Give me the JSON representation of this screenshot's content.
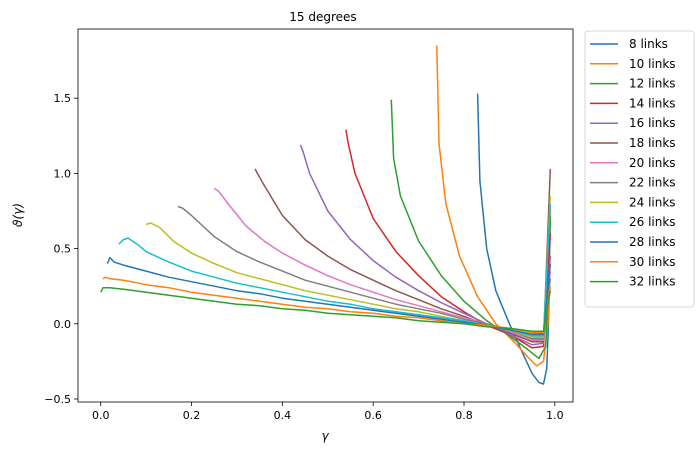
{
  "chart_data": {
    "type": "line",
    "title": "15 degrees",
    "xlabel": "γ",
    "ylabel": "ϑ(γ)",
    "xlim": [
      -0.05,
      1.04
    ],
    "ylim": [
      -0.52,
      1.96
    ],
    "xticks": [
      0.0,
      0.2,
      0.4,
      0.6,
      0.8,
      1.0
    ],
    "xtick_labels": [
      "0.0",
      "0.2",
      "0.4",
      "0.6",
      "0.8",
      "1.0"
    ],
    "yticks": [
      -0.5,
      0.0,
      0.5,
      1.0,
      1.5
    ],
    "ytick_labels": [
      "−0.5",
      "0.0",
      "0.5",
      "1.0",
      "1.5"
    ],
    "grid": false,
    "legend_position": "outside-right",
    "series": [
      {
        "name": "8 links",
        "color": "#1f77b4",
        "x": [
          0.83,
          0.835,
          0.85,
          0.87,
          0.9,
          0.93,
          0.95,
          0.965,
          0.975,
          0.982,
          0.986,
          0.99
        ],
        "y": [
          1.53,
          0.95,
          0.5,
          0.22,
          0.0,
          -0.2,
          -0.33,
          -0.39,
          -0.4,
          -0.3,
          0.0,
          0.7
        ]
      },
      {
        "name": "10 links",
        "color": "#ff7f0e",
        "x": [
          0.74,
          0.745,
          0.76,
          0.79,
          0.83,
          0.87,
          0.91,
          0.94,
          0.96,
          0.975,
          0.985,
          0.99
        ],
        "y": [
          1.85,
          1.2,
          0.8,
          0.45,
          0.18,
          0.0,
          -0.12,
          -0.22,
          -0.28,
          -0.25,
          0.0,
          0.78
        ]
      },
      {
        "name": "12 links",
        "color": "#2ca02c",
        "x": [
          0.64,
          0.645,
          0.66,
          0.7,
          0.75,
          0.8,
          0.85,
          0.9,
          0.94,
          0.965,
          0.98,
          0.99
        ],
        "y": [
          1.49,
          1.1,
          0.85,
          0.55,
          0.32,
          0.15,
          0.02,
          -0.08,
          -0.17,
          -0.23,
          -0.15,
          0.72
        ]
      },
      {
        "name": "14 links",
        "color": "#d62728",
        "x": [
          0.54,
          0.545,
          0.56,
          0.6,
          0.65,
          0.7,
          0.75,
          0.8,
          0.85,
          0.9,
          0.95,
          0.975,
          0.99
        ],
        "y": [
          1.29,
          1.2,
          1.0,
          0.7,
          0.48,
          0.32,
          0.18,
          0.08,
          -0.01,
          -0.07,
          -0.16,
          -0.15,
          0.6
        ]
      },
      {
        "name": "16 links",
        "color": "#9467bd",
        "x": [
          0.44,
          0.445,
          0.46,
          0.5,
          0.55,
          0.6,
          0.65,
          0.7,
          0.75,
          0.8,
          0.85,
          0.9,
          0.95,
          0.975,
          0.99
        ],
        "y": [
          1.19,
          1.15,
          1.0,
          0.75,
          0.56,
          0.42,
          0.31,
          0.22,
          0.14,
          0.07,
          0.0,
          -0.07,
          -0.14,
          -0.13,
          0.45
        ]
      },
      {
        "name": "18 links",
        "color": "#8c564b",
        "x": [
          0.34,
          0.345,
          0.36,
          0.4,
          0.45,
          0.5,
          0.55,
          0.6,
          0.65,
          0.7,
          0.75,
          0.8,
          0.85,
          0.9,
          0.95,
          0.975,
          0.99
        ],
        "y": [
          1.03,
          1.0,
          0.92,
          0.72,
          0.56,
          0.45,
          0.36,
          0.29,
          0.22,
          0.16,
          0.1,
          0.05,
          -0.01,
          -0.06,
          -0.12,
          -0.12,
          1.03
        ]
      },
      {
        "name": "20 links",
        "color": "#e377c2",
        "x": [
          0.25,
          0.26,
          0.28,
          0.32,
          0.36,
          0.4,
          0.45,
          0.5,
          0.55,
          0.6,
          0.65,
          0.7,
          0.75,
          0.8,
          0.85,
          0.9,
          0.95,
          0.975,
          0.99
        ],
        "y": [
          0.9,
          0.88,
          0.8,
          0.65,
          0.55,
          0.47,
          0.39,
          0.32,
          0.26,
          0.21,
          0.16,
          0.12,
          0.08,
          0.04,
          0.0,
          -0.05,
          -0.11,
          -0.11,
          0.35
        ]
      },
      {
        "name": "22 links",
        "color": "#7f7f7f",
        "x": [
          0.17,
          0.18,
          0.2,
          0.25,
          0.3,
          0.35,
          0.4,
          0.45,
          0.5,
          0.55,
          0.6,
          0.65,
          0.7,
          0.75,
          0.8,
          0.85,
          0.9,
          0.95,
          0.975,
          0.99
        ],
        "y": [
          0.78,
          0.77,
          0.72,
          0.58,
          0.48,
          0.41,
          0.35,
          0.29,
          0.25,
          0.21,
          0.17,
          0.13,
          0.1,
          0.07,
          0.03,
          0.0,
          -0.04,
          -0.1,
          -0.1,
          0.3
        ]
      },
      {
        "name": "24 links",
        "color": "#bcbd22",
        "x": [
          0.1,
          0.11,
          0.13,
          0.16,
          0.2,
          0.25,
          0.3,
          0.35,
          0.4,
          0.45,
          0.5,
          0.55,
          0.6,
          0.65,
          0.7,
          0.75,
          0.8,
          0.85,
          0.9,
          0.95,
          0.975,
          0.99
        ],
        "y": [
          0.66,
          0.67,
          0.64,
          0.55,
          0.47,
          0.4,
          0.34,
          0.3,
          0.26,
          0.22,
          0.19,
          0.16,
          0.13,
          0.1,
          0.08,
          0.05,
          0.02,
          -0.01,
          -0.04,
          -0.09,
          -0.09,
          0.85
        ]
      },
      {
        "name": "26 links",
        "color": "#17becf",
        "x": [
          0.04,
          0.05,
          0.06,
          0.08,
          0.1,
          0.15,
          0.2,
          0.25,
          0.3,
          0.35,
          0.4,
          0.45,
          0.5,
          0.55,
          0.6,
          0.65,
          0.7,
          0.75,
          0.8,
          0.85,
          0.9,
          0.95,
          0.975,
          0.99
        ],
        "y": [
          0.53,
          0.56,
          0.57,
          0.53,
          0.48,
          0.41,
          0.35,
          0.31,
          0.27,
          0.24,
          0.21,
          0.18,
          0.15,
          0.13,
          0.1,
          0.08,
          0.06,
          0.04,
          0.02,
          -0.01,
          -0.04,
          -0.08,
          -0.08,
          0.8
        ]
      },
      {
        "name": "28 links",
        "color": "#1f77b4",
        "x": [
          0.015,
          0.02,
          0.03,
          0.05,
          0.1,
          0.15,
          0.2,
          0.25,
          0.3,
          0.35,
          0.4,
          0.45,
          0.5,
          0.55,
          0.6,
          0.65,
          0.7,
          0.75,
          0.8,
          0.85,
          0.9,
          0.95,
          0.975,
          0.99
        ],
        "y": [
          0.4,
          0.44,
          0.41,
          0.39,
          0.35,
          0.31,
          0.28,
          0.25,
          0.22,
          0.2,
          0.17,
          0.15,
          0.13,
          0.11,
          0.09,
          0.07,
          0.05,
          0.03,
          0.01,
          -0.01,
          -0.04,
          -0.07,
          -0.07,
          0.4
        ]
      },
      {
        "name": "30 links",
        "color": "#ff7f0e",
        "x": [
          0.005,
          0.01,
          0.02,
          0.05,
          0.1,
          0.15,
          0.2,
          0.25,
          0.3,
          0.35,
          0.4,
          0.45,
          0.5,
          0.55,
          0.6,
          0.65,
          0.7,
          0.75,
          0.8,
          0.85,
          0.9,
          0.95,
          0.975,
          0.99
        ],
        "y": [
          0.3,
          0.31,
          0.3,
          0.29,
          0.26,
          0.24,
          0.21,
          0.19,
          0.17,
          0.15,
          0.13,
          0.11,
          0.1,
          0.08,
          0.07,
          0.05,
          0.04,
          0.02,
          0.0,
          -0.01,
          -0.03,
          -0.06,
          -0.06,
          0.25
        ]
      },
      {
        "name": "32 links",
        "color": "#2ca02c",
        "x": [
          0.0,
          0.005,
          0.02,
          0.05,
          0.1,
          0.15,
          0.2,
          0.25,
          0.3,
          0.35,
          0.4,
          0.45,
          0.5,
          0.55,
          0.6,
          0.65,
          0.7,
          0.75,
          0.8,
          0.85,
          0.9,
          0.95,
          0.975,
          0.99
        ],
        "y": [
          0.21,
          0.24,
          0.24,
          0.23,
          0.21,
          0.19,
          0.17,
          0.15,
          0.13,
          0.12,
          0.1,
          0.09,
          0.07,
          0.06,
          0.05,
          0.04,
          0.02,
          0.01,
          0.0,
          -0.02,
          -0.03,
          -0.05,
          -0.05,
          0.22
        ]
      }
    ]
  }
}
